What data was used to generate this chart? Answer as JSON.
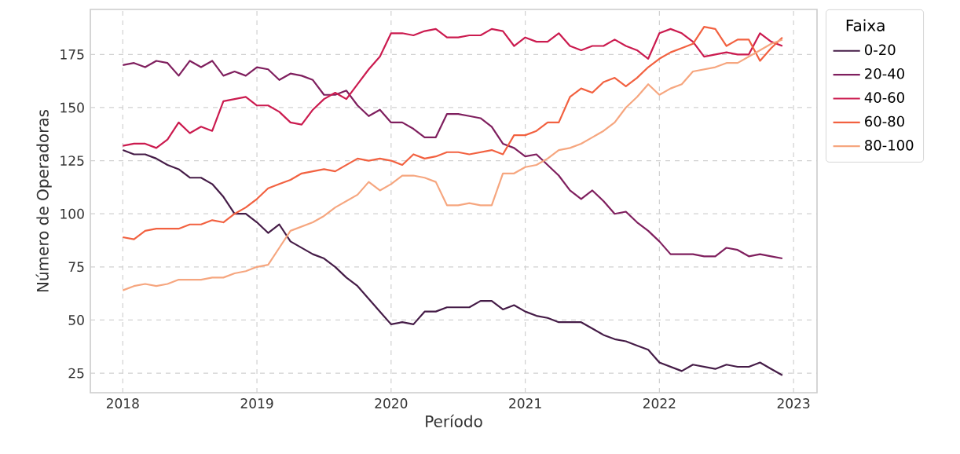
{
  "chart_data": {
    "type": "line",
    "xlabel": "Período",
    "ylabel": "Número de Operadoras",
    "legend_title": "Faixa",
    "legend": "top right",
    "grid": true,
    "x": [
      "2018-01",
      "2018-02",
      "2018-03",
      "2018-04",
      "2018-05",
      "2018-06",
      "2018-07",
      "2018-08",
      "2018-09",
      "2018-10",
      "2018-11",
      "2018-12",
      "2019-01",
      "2019-02",
      "2019-03",
      "2019-04",
      "2019-05",
      "2019-06",
      "2019-07",
      "2019-08",
      "2019-09",
      "2019-10",
      "2019-11",
      "2019-12",
      "2020-01",
      "2020-02",
      "2020-03",
      "2020-04",
      "2020-05",
      "2020-06",
      "2020-07",
      "2020-08",
      "2020-09",
      "2020-10",
      "2020-11",
      "2020-12",
      "2021-01",
      "2021-02",
      "2021-03",
      "2021-04",
      "2021-05",
      "2021-06",
      "2021-07",
      "2021-08",
      "2021-09",
      "2021-10",
      "2021-11",
      "2021-12",
      "2022-01",
      "2022-02",
      "2022-03",
      "2022-04",
      "2022-05",
      "2022-06",
      "2022-07",
      "2022-08",
      "2022-09",
      "2022-10",
      "2022-11",
      "2022-12"
    ],
    "xlim": [
      "2017-10-04",
      "2023-03-04"
    ],
    "xticks": [
      {
        "value": "2018",
        "label": "2018"
      },
      {
        "value": "2019",
        "label": "2019"
      },
      {
        "value": "2020",
        "label": "2020"
      },
      {
        "value": "2021",
        "label": "2021"
      },
      {
        "value": "2022",
        "label": "2022"
      },
      {
        "value": "2023",
        "label": "2023"
      }
    ],
    "ylim": [
      15.8,
      196.2
    ],
    "yticks": [
      25,
      50,
      75,
      100,
      125,
      150,
      175
    ],
    "series": [
      {
        "name": "0-20",
        "color": "#451c47",
        "values": [
          130,
          128,
          128,
          126,
          123,
          121,
          117,
          117,
          114,
          108,
          100,
          100,
          96,
          91,
          95,
          87,
          84,
          81,
          79,
          75,
          70,
          66,
          60,
          54,
          48,
          49,
          48,
          54,
          54,
          56,
          56,
          56,
          59,
          59,
          55,
          57,
          54,
          52,
          51,
          49,
          49,
          49,
          46,
          43,
          41,
          40,
          38,
          36,
          30,
          28,
          26,
          29,
          28,
          27,
          29,
          28,
          28,
          30,
          27,
          24
        ]
      },
      {
        "name": "20-40",
        "color": "#7f1f5e",
        "values": [
          170,
          171,
          169,
          172,
          171,
          165,
          172,
          169,
          172,
          165,
          167,
          165,
          169,
          168,
          163,
          166,
          165,
          163,
          156,
          156,
          158,
          151,
          146,
          149,
          143,
          143,
          140,
          136,
          136,
          147,
          147,
          146,
          145,
          141,
          133,
          131,
          127,
          128,
          123,
          118,
          111,
          107,
          111,
          106,
          100,
          101,
          96,
          92,
          87,
          81,
          81,
          81,
          80,
          80,
          84,
          83,
          80,
          81,
          80,
          79
        ]
      },
      {
        "name": "40-60",
        "color": "#cb1b4f",
        "values": [
          132,
          133,
          133,
          131,
          135,
          143,
          138,
          141,
          139,
          153,
          154,
          155,
          151,
          151,
          148,
          143,
          142,
          149,
          154,
          157,
          154,
          161,
          168,
          174,
          185,
          185,
          184,
          186,
          187,
          183,
          183,
          184,
          184,
          187,
          186,
          179,
          183,
          181,
          181,
          185,
          179,
          177,
          179,
          179,
          182,
          179,
          177,
          173,
          185,
          187,
          185,
          181,
          174,
          175,
          176,
          175,
          175,
          185,
          181,
          179
        ]
      },
      {
        "name": "60-80",
        "color": "#f26140",
        "values": [
          89,
          88,
          92,
          93,
          93,
          93,
          95,
          95,
          97,
          96,
          100,
          103,
          107,
          112,
          114,
          116,
          119,
          120,
          121,
          120,
          123,
          126,
          125,
          126,
          125,
          123,
          128,
          126,
          127,
          129,
          129,
          128,
          129,
          130,
          128,
          137,
          137,
          139,
          143,
          143,
          155,
          159,
          157,
          162,
          164,
          160,
          164,
          169,
          173,
          176,
          178,
          180,
          188,
          187,
          179,
          182,
          182,
          172,
          178,
          183
        ]
      },
      {
        "name": "80-100",
        "color": "#f6a67f",
        "values": [
          64,
          66,
          67,
          66,
          67,
          69,
          69,
          69,
          70,
          70,
          72,
          73,
          75,
          76,
          84,
          92,
          94,
          96,
          99,
          103,
          106,
          109,
          115,
          111,
          114,
          118,
          118,
          117,
          115,
          104,
          104,
          105,
          104,
          104,
          119,
          119,
          122,
          123,
          126,
          130,
          131,
          133,
          136,
          139,
          143,
          150,
          155,
          161,
          156,
          159,
          161,
          167,
          168,
          169,
          171,
          171,
          174,
          177,
          180,
          182
        ]
      }
    ]
  }
}
